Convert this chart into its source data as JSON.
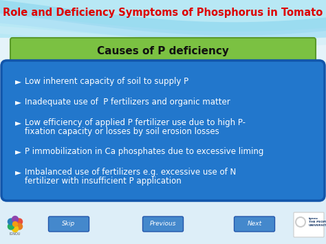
{
  "title": "Role and Deficiency Symptoms of Phosphorus in Tomato",
  "title_color": "#dd0000",
  "title_fontsize": 10.5,
  "subtitle": "Causes of P deficiency",
  "subtitle_bg": "#7bc142",
  "subtitle_fontsize": 11,
  "bg_top_color": "#c8eef8",
  "bg_bottom_color": "#e8f4f8",
  "wave_color": "#a0ddf0",
  "bullet_box_color": "#2277cc",
  "bullet_box_border": "#1155aa",
  "bullet_symbol": "►",
  "bullet_color": "#ffffff",
  "bullet_fontsize": 8.5,
  "bullets": [
    "Low inherent capacity of soil to supply P",
    "Inadequate use of  P fertilizers and organic matter",
    "Low efficiency of applied P fertilizer use due to high P-\nfixation capacity or losses by soil erosion losses",
    "P immobilization in Ca phosphates due to excessive liming",
    "Imbalanced use of fertilizers e.g. excessive use of N\nfertilizer with insufficient P application"
  ],
  "nav_buttons": [
    "Skip",
    "Previous",
    "Next"
  ],
  "nav_button_color": "#4488cc",
  "nav_button_text_color": "#ffffff",
  "nav_fontsize": 6.5,
  "bottom_bg": "#ddeef8"
}
